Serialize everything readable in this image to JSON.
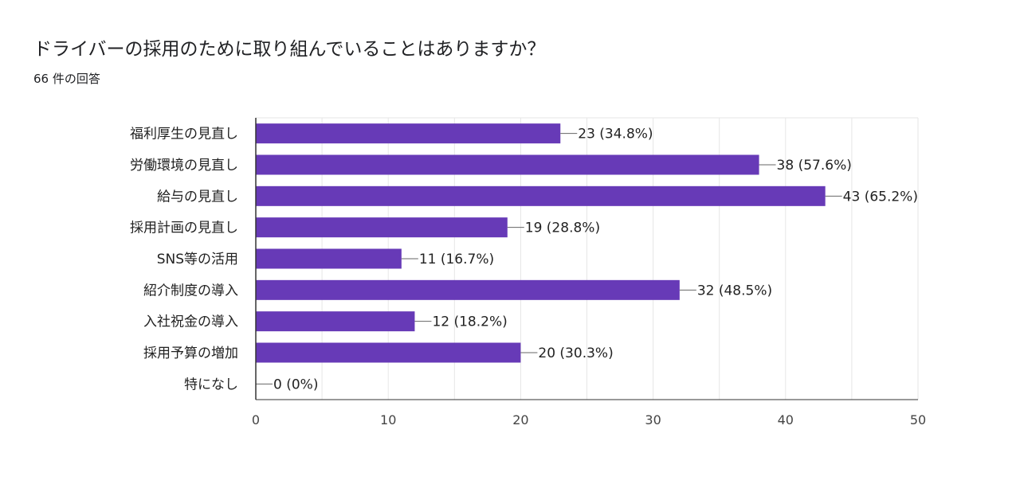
{
  "header": {
    "title": "ドライバーの採用のために取り組んでいることはありますか？",
    "subtitle": "66 件の回答"
  },
  "colors": {
    "bar": "#673ab7",
    "grid": "#e6e6e6",
    "axis": "#333333",
    "leader": "#666666"
  },
  "chart_data": {
    "type": "bar",
    "orientation": "horizontal",
    "title": "ドライバーの採用のために取り組んでいることはありますか？",
    "categories": [
      "福利厚生の見直し",
      "労働環境の見直し",
      "給与の見直し",
      "採用計画の見直し",
      "SNS等の活用",
      "紹介制度の導入",
      "入社祝金の導入",
      "採用予算の増加",
      "特になし"
    ],
    "values": [
      23,
      38,
      43,
      19,
      11,
      32,
      12,
      20,
      0
    ],
    "data_labels": [
      "23 (34.8%)",
      "38 (57.6%)",
      "43 (65.2%)",
      "19 (28.8%)",
      "11 (16.7%)",
      "32 (48.5%)",
      "12 (18.2%)",
      "20 (30.3%)",
      "0 (0%)"
    ],
    "xlim": [
      0,
      50
    ],
    "xticks": [
      0,
      10,
      20,
      30,
      40,
      50
    ],
    "minor_step": 5,
    "xlabel": "",
    "ylabel": "",
    "grid": true,
    "legend": "none"
  }
}
